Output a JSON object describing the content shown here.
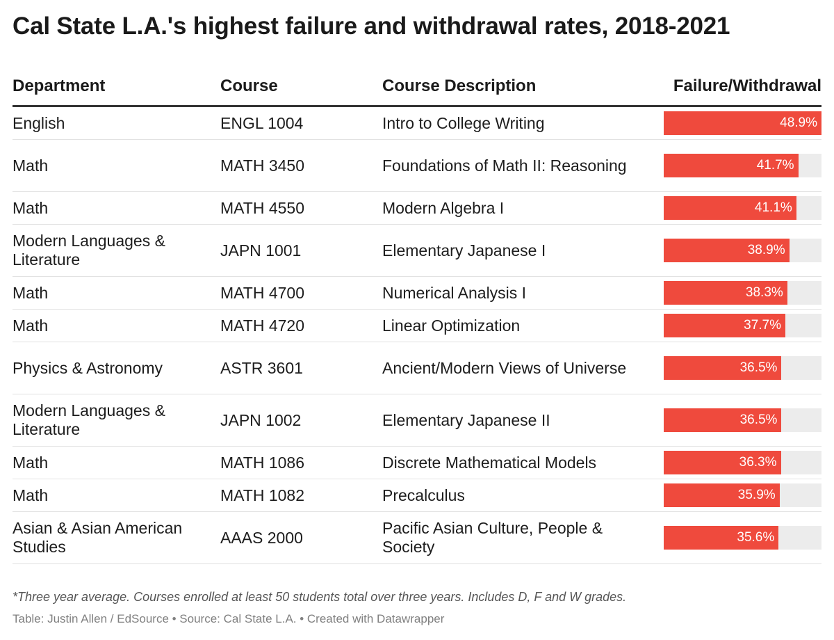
{
  "title": "Cal State L.A.'s highest failure and withdrawal rates, 2018-2021",
  "footnote": "*Three year average. Courses enrolled at least 50 students total over three years. Includes D, F and W grades.",
  "credit": "Table: Justin Allen / EdSource • Source: Cal State L.A. • Created with Datawrapper",
  "colors": {
    "bar": "#ef4a3d",
    "bar_track": "#ececec",
    "header_rule": "#333333",
    "row_rule": "#e2e2e2"
  },
  "chart_data": {
    "type": "table",
    "title": "Cal State L.A.'s highest failure and withdrawal rates, 2018-2021",
    "columns": [
      "Department",
      "Course",
      "Course Description",
      "Failure/Withdrawal"
    ],
    "bar_column": "Failure/Withdrawal",
    "bar_max": 48.9,
    "rows": [
      {
        "department": "English",
        "course": "ENGL 1004",
        "description": "Intro to College Writing",
        "rate": 48.9,
        "rate_label": "48.9%"
      },
      {
        "department": "Math",
        "course": "MATH 3450",
        "description": "Foundations of Math II: Reasoning",
        "rate": 41.7,
        "rate_label": "41.7%"
      },
      {
        "department": "Math",
        "course": "MATH 4550",
        "description": "Modern Algebra I",
        "rate": 41.1,
        "rate_label": "41.1%"
      },
      {
        "department": "Modern Languages & Literature",
        "course": "JAPN 1001",
        "description": "Elementary Japanese I",
        "rate": 38.9,
        "rate_label": "38.9%"
      },
      {
        "department": "Math",
        "course": "MATH 4700",
        "description": "Numerical Analysis I",
        "rate": 38.3,
        "rate_label": "38.3%"
      },
      {
        "department": "Math",
        "course": "MATH 4720",
        "description": "Linear Optimization",
        "rate": 37.7,
        "rate_label": "37.7%"
      },
      {
        "department": "Physics & Astronomy",
        "course": "ASTR 3601",
        "description": "Ancient/Modern Views of Universe",
        "rate": 36.5,
        "rate_label": "36.5%"
      },
      {
        "department": "Modern Languages & Literature",
        "course": "JAPN 1002",
        "description": "Elementary Japanese II",
        "rate": 36.5,
        "rate_label": "36.5%"
      },
      {
        "department": "Math",
        "course": "MATH 1086",
        "description": "Discrete Mathematical Models",
        "rate": 36.3,
        "rate_label": "36.3%"
      },
      {
        "department": "Math",
        "course": "MATH 1082",
        "description": "Precalculus",
        "rate": 35.9,
        "rate_label": "35.9%"
      },
      {
        "department": "Asian & Asian American Studies",
        "course": "AAAS 2000",
        "description": "Pacific Asian Culture, People & Society",
        "rate": 35.6,
        "rate_label": "35.6%"
      }
    ]
  }
}
